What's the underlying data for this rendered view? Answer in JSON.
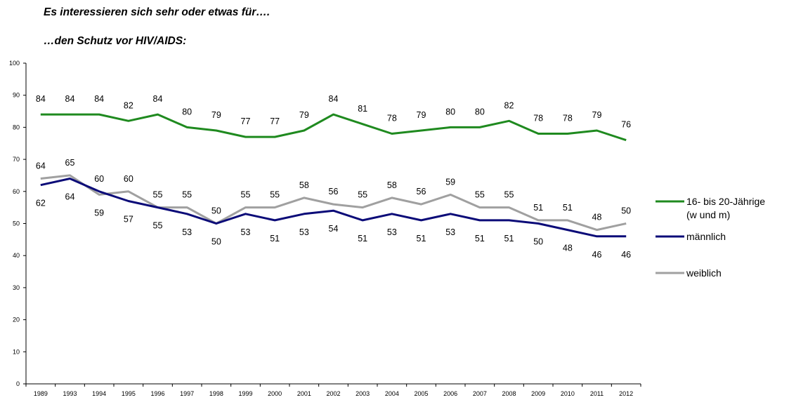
{
  "title": "Es interessieren sich sehr oder etwas für….",
  "subtitle": "…den Schutz vor HIV/AIDS:",
  "chart_data": {
    "type": "line",
    "title": "Es interessieren sich sehr oder etwas für….",
    "subtitle": "…den Schutz vor HIV/AIDS:",
    "xlabel": "",
    "ylabel": "",
    "ylim": [
      0,
      100
    ],
    "yticks": [
      0,
      10,
      20,
      30,
      40,
      50,
      60,
      70,
      80,
      90,
      100
    ],
    "grid": false,
    "legend_position": "right",
    "categories": [
      "1989",
      "1993",
      "1994",
      "1995",
      "1996",
      "1997",
      "1998",
      "1999",
      "2000",
      "2001",
      "2002",
      "2003",
      "2004",
      "2005",
      "2006",
      "2007",
      "2008",
      "2009",
      "2010",
      "2011",
      "2012"
    ],
    "series": [
      {
        "name": "16- bis 20-Jährige (w und m)",
        "legend_lines": [
          "16- bis 20-Jährige",
          "(w und m)"
        ],
        "color": "#1f8a1f",
        "values": [
          84,
          84,
          84,
          82,
          84,
          80,
          79,
          77,
          77,
          79,
          84,
          81,
          78,
          79,
          80,
          80,
          82,
          78,
          78,
          79,
          76
        ]
      },
      {
        "name": "männlich",
        "legend_lines": [
          "männlich"
        ],
        "color": "#0b0b78",
        "values": [
          62,
          64,
          60,
          57,
          55,
          53,
          50,
          53,
          51,
          53,
          54,
          51,
          53,
          51,
          53,
          51,
          51,
          50,
          48,
          46,
          46
        ]
      },
      {
        "name": "weiblich",
        "legend_lines": [
          "weiblich"
        ],
        "color": "#a0a0a0",
        "values": [
          64,
          65,
          59,
          60,
          55,
          55,
          50,
          55,
          55,
          58,
          56,
          55,
          58,
          56,
          59,
          55,
          55,
          51,
          51,
          48,
          50
        ]
      }
    ]
  }
}
